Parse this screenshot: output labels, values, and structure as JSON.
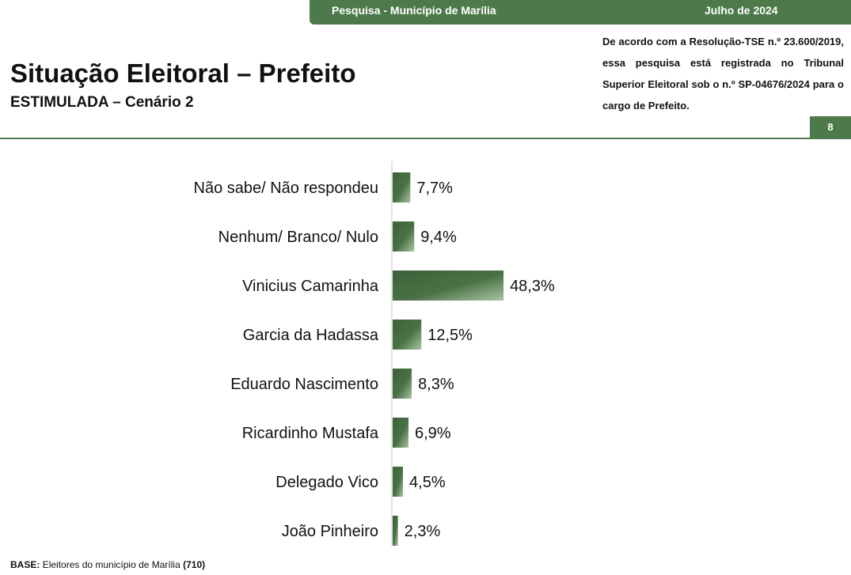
{
  "header": {
    "survey": "Pesquisa - Município de Marília",
    "date": "Julho de 2024",
    "page_number": "8"
  },
  "title": "Situação Eleitoral – Prefeito",
  "subtitle": "ESTIMULADA – Cenário 2",
  "notice": "De acordo com a Resolução-TSE n.º 23.600/2019, essa pesquisa está registrada no Tribunal Superior Eleitoral sob o n.º SP-04676/2024 para o cargo de Prefeito.",
  "footer": {
    "base_label": "BASE:",
    "base_text": "Eleitores do município de Marília",
    "base_count": "(710)"
  },
  "colors": {
    "accent": "#4e7a4b",
    "bar_dark": "#3d6139",
    "bar_light": "#a9c4a3"
  },
  "chart_data": {
    "type": "bar",
    "orientation": "horizontal",
    "categories": [
      "Não sabe/ Não respondeu",
      "Nenhum/ Branco/ Nulo",
      "Vinicius Camarinha",
      "Garcia da Hadassa",
      "Eduardo Nascimento",
      "Ricardinho Mustafa",
      "Delegado Vico",
      "João Pinheiro"
    ],
    "values": [
      7.7,
      9.4,
      48.3,
      12.5,
      8.3,
      6.9,
      4.5,
      2.3
    ],
    "value_labels": [
      "7,7%",
      "9,4%",
      "48,3%",
      "12,5%",
      "8,3%",
      "6,9%",
      "4,5%",
      "2,3%"
    ],
    "unit": "%",
    "grid": false,
    "legend": false
  }
}
